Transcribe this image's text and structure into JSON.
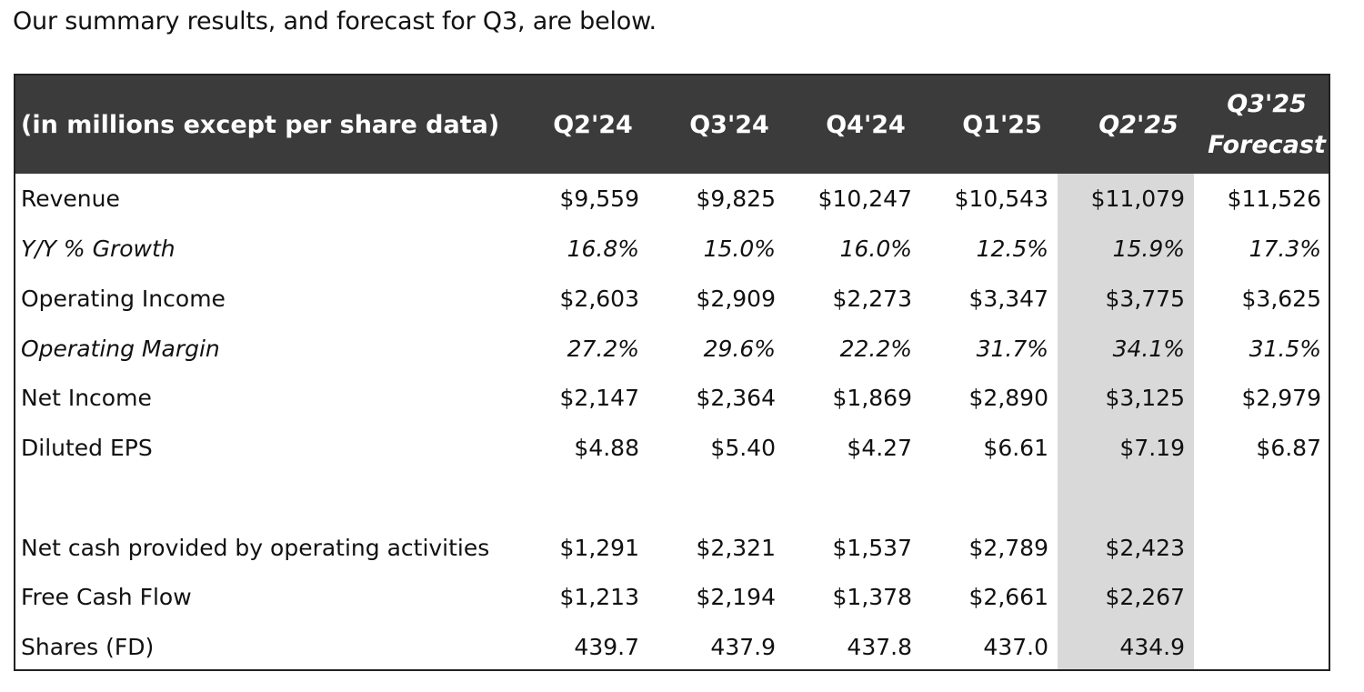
{
  "intro_text": "Our summary results, and forecast for Q3, are below.",
  "table": {
    "header_label": "(in millions except per share data)",
    "columns": [
      "Q2'24",
      "Q3'24",
      "Q4'24",
      "Q1'25",
      "Q2'25"
    ],
    "forecast_column": [
      "Q3'25",
      "Forecast"
    ],
    "highlight_color": "#d9d9d9",
    "header_bg": "#3b3b3b",
    "rows": [
      {
        "label": "Revenue",
        "values": [
          "$9,559",
          "$9,825",
          "$10,247",
          "$10,543",
          "$11,079",
          "$11,526"
        ]
      },
      {
        "label": "Y/Y % Growth",
        "values": [
          "16.8%",
          "15.0%",
          "16.0%",
          "12.5%",
          "15.9%",
          "17.3%"
        ]
      },
      {
        "label": "Operating Income",
        "values": [
          "$2,603",
          "$2,909",
          "$2,273",
          "$3,347",
          "$3,775",
          "$3,625"
        ]
      },
      {
        "label": "Operating Margin",
        "values": [
          "27.2%",
          "29.6%",
          "22.2%",
          "31.7%",
          "34.1%",
          "31.5%"
        ]
      },
      {
        "label": "Net Income",
        "values": [
          "$2,147",
          "$2,364",
          "$1,869",
          "$2,890",
          "$3,125",
          "$2,979"
        ]
      },
      {
        "label": "Diluted EPS",
        "values": [
          "$4.88",
          "$5.40",
          "$4.27",
          "$6.61",
          "$7.19",
          "$6.87"
        ]
      },
      {
        "label": "Net cash provided by operating activities",
        "values": [
          "$1,291",
          "$2,321",
          "$1,537",
          "$2,789",
          "$2,423",
          ""
        ]
      },
      {
        "label": "Free Cash Flow",
        "values": [
          "$1,213",
          "$2,194",
          "$1,378",
          "$2,661",
          "$2,267",
          ""
        ]
      },
      {
        "label": "Shares (FD)",
        "values": [
          "439.7",
          "437.9",
          "437.8",
          "437.0",
          "434.9",
          ""
        ]
      }
    ]
  }
}
